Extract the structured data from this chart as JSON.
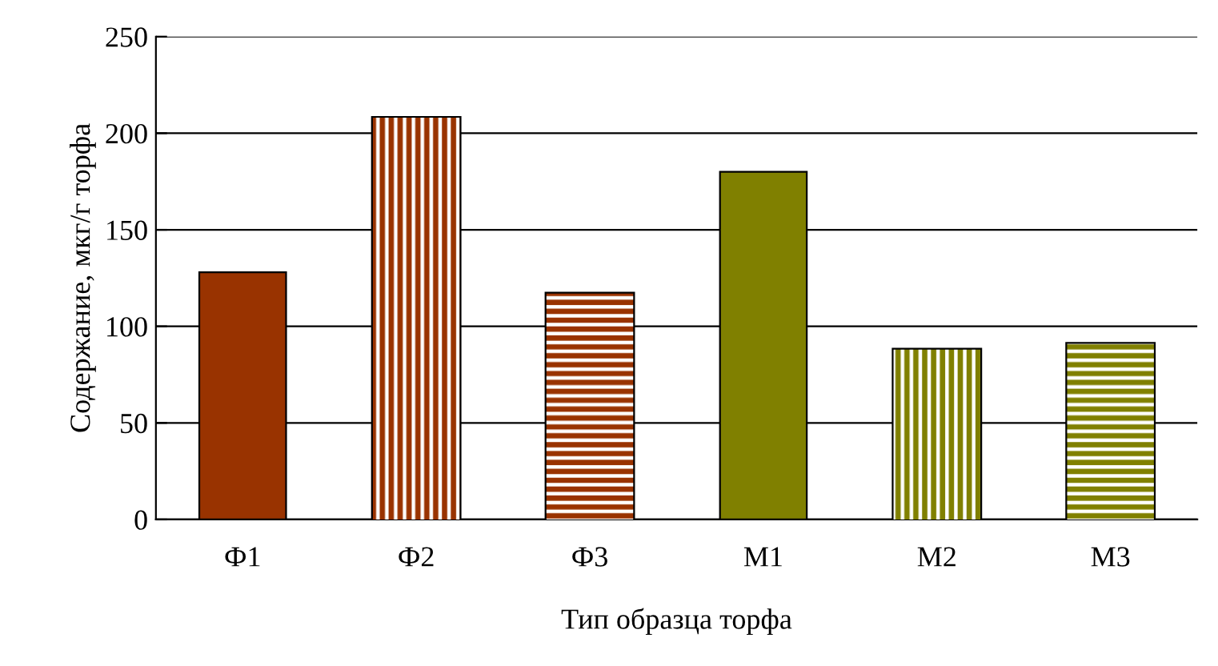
{
  "chart_data": {
    "type": "bar",
    "categories": [
      "Ф1",
      "Ф2",
      "Ф3",
      "М1",
      "М2",
      "М3"
    ],
    "values": [
      128,
      208,
      117,
      180,
      88,
      91
    ],
    "colors": [
      "#993300",
      "#993300",
      "#993300",
      "#808000",
      "#808000",
      "#808000"
    ],
    "xlabel": "Тип образца торфа",
    "ylabel": "Содержание, мкг/г торфа",
    "ylim": [
      0,
      250
    ],
    "yticks": [
      0,
      50,
      100,
      150,
      200,
      250
    ],
    "grid": "y",
    "legend": false
  }
}
